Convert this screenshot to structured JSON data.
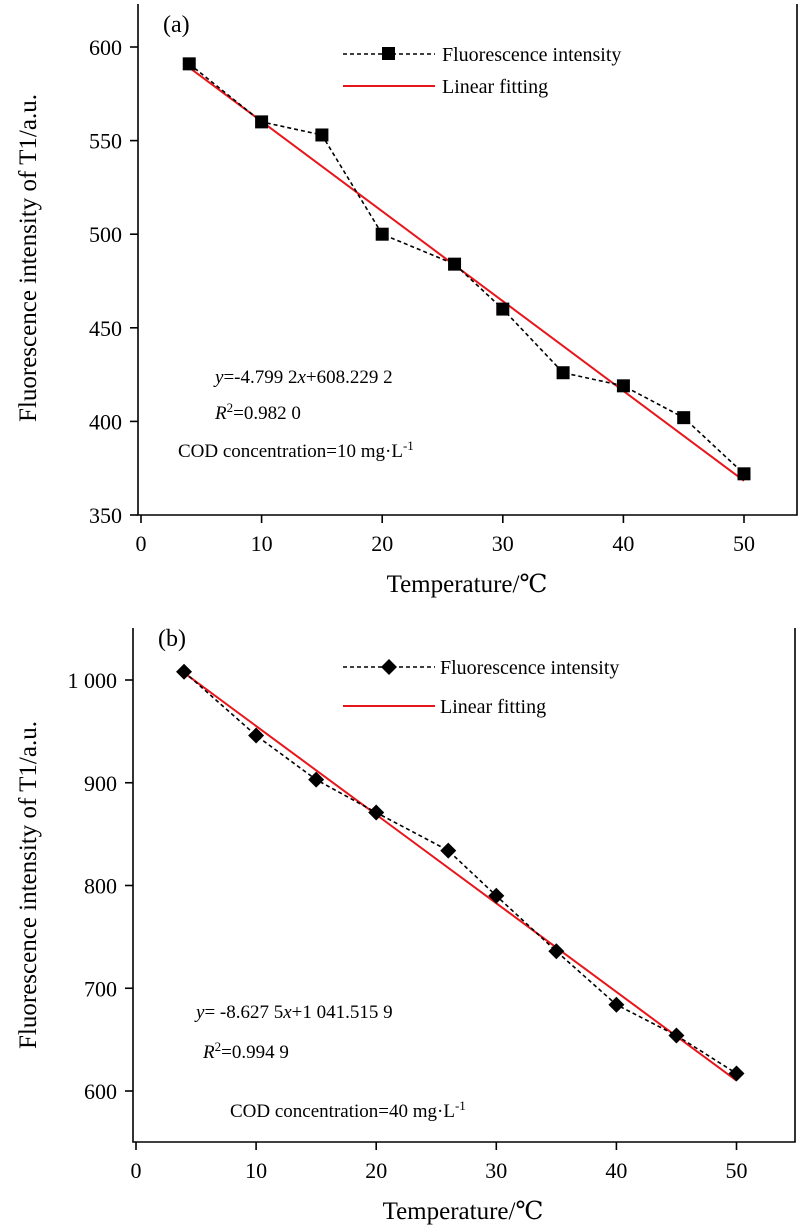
{
  "chart_data": [
    {
      "type": "line",
      "panel_label": "(a)",
      "xlabel": "Temperature/℃",
      "ylabel": "Fluorescence intensity of T1/a.u.",
      "xlim": [
        0,
        55
      ],
      "ylim": [
        350,
        610
      ],
      "xticks": [
        0,
        10,
        20,
        30,
        40,
        50
      ],
      "xtick_labels": [
        "0",
        "10",
        "20",
        "30",
        "40",
        "50"
      ],
      "yticks": [
        350,
        400,
        450,
        500,
        550,
        600
      ],
      "ytick_labels": [
        "350",
        "400",
        "450",
        "500",
        "550",
        "600"
      ],
      "legend_position": "top-right",
      "series": [
        {
          "name": "Fluorescence intensity",
          "marker": "square",
          "style": "dashed",
          "color": "#000000",
          "x": [
            4,
            10,
            15,
            20,
            26,
            30,
            35,
            40,
            45,
            50
          ],
          "y": [
            591,
            560,
            553,
            500,
            484,
            460,
            426,
            419,
            402,
            372
          ]
        },
        {
          "name": "Linear fitting",
          "style": "solid",
          "color": "#e8161b",
          "x": [
            4,
            50
          ],
          "y": [
            589.03,
            368.27
          ]
        }
      ],
      "annotations": {
        "eq_y": "y",
        "eq_x": "x",
        "eq_a": "=-4.799 2",
        "eq_b": "+608.229 2",
        "r2_r": "R",
        "r2_sup": "2",
        "r2_val": "=0.982 0",
        "cod_text": "COD concentration=10 mg·L",
        "cod_sup": "-1"
      }
    },
    {
      "type": "line",
      "panel_label": "(b)",
      "xlabel": "Temperature/℃",
      "ylabel": "Fluorescence intensity of T1/a.u.",
      "xlim": [
        0,
        55
      ],
      "ylim": [
        560,
        1050
      ],
      "xticks": [
        0,
        10,
        20,
        30,
        40,
        50
      ],
      "xtick_labels": [
        "0",
        "10",
        "20",
        "30",
        "40",
        "50"
      ],
      "yticks": [
        600,
        700,
        800,
        900,
        1000
      ],
      "ytick_labels": [
        "600",
        "700",
        "800",
        "900",
        "1 000"
      ],
      "legend_position": "top-right",
      "series": [
        {
          "name": "Fluorescence intensity",
          "marker": "diamond",
          "style": "dashed",
          "color": "#000000",
          "x": [
            4,
            10,
            15,
            20,
            26,
            30,
            35,
            40,
            45,
            50
          ],
          "y": [
            1008,
            946,
            903,
            871,
            834,
            790,
            736,
            684,
            654,
            617
          ]
        },
        {
          "name": "Linear fitting",
          "style": "solid",
          "color": "#e8161b",
          "x": [
            4,
            50
          ],
          "y": [
            1007.0,
            610.14
          ]
        }
      ],
      "annotations": {
        "eq_y": "y",
        "eq_x": "x",
        "eq_a": "= -8.627 5",
        "eq_b": "+1 041.515 9",
        "r2_r": "R",
        "r2_sup": "2",
        "r2_val": "=0.994 9",
        "cod_text": "COD concentration=40 mg·L",
        "cod_sup": "-1"
      }
    }
  ]
}
